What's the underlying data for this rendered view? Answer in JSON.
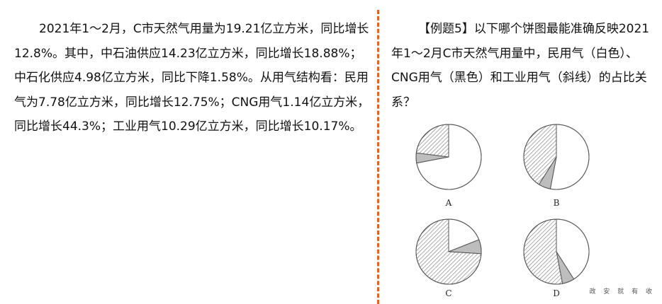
{
  "passage": {
    "text": "2021年1～2月，C市天然气用量为19.21亿立方米，同比增长12.8%。其中，中石油供应14.23亿立方米，同比增长18.88%；中石化供应4.98亿立方米，同比下降1.58%。从用气结构看：民用气为7.78亿立方米，同比增长12.75%；CNG用气1.14亿立方米，同比增长44.3%；工业用气10.29亿立方米，同比增长10.17%。"
  },
  "question": {
    "text": "【例题5】以下哪个饼图最能准确反映2021年1～2月C市天然气用量中，民用气（白色）、CNG用气（黑色）和工业用气（斜线）的占比关系？"
  },
  "options": [
    {
      "label": "A",
      "slices": [
        {
          "kind": "white",
          "fraction": 0.72
        },
        {
          "kind": "black",
          "fraction": 0.05
        },
        {
          "kind": "hatched",
          "fraction": 0.23
        }
      ]
    },
    {
      "label": "B",
      "slices": [
        {
          "kind": "white",
          "fraction": 0.53
        },
        {
          "kind": "black",
          "fraction": 0.06
        },
        {
          "kind": "hatched",
          "fraction": 0.41
        }
      ]
    },
    {
      "label": "C",
      "slices": [
        {
          "kind": "white",
          "fraction": 0.19
        },
        {
          "kind": "black",
          "fraction": 0.07
        },
        {
          "kind": "hatched",
          "fraction": 0.74
        }
      ]
    },
    {
      "label": "D",
      "slices": [
        {
          "kind": "white",
          "fraction": 0.41
        },
        {
          "kind": "black",
          "fraction": 0.06
        },
        {
          "kind": "hatched",
          "fraction": 0.53
        }
      ]
    }
  ],
  "watermark": "政 安 就 有 收",
  "colors": {
    "divider": "#e8632a",
    "black_slice": "#bdbdbd",
    "outline": "#555555"
  }
}
